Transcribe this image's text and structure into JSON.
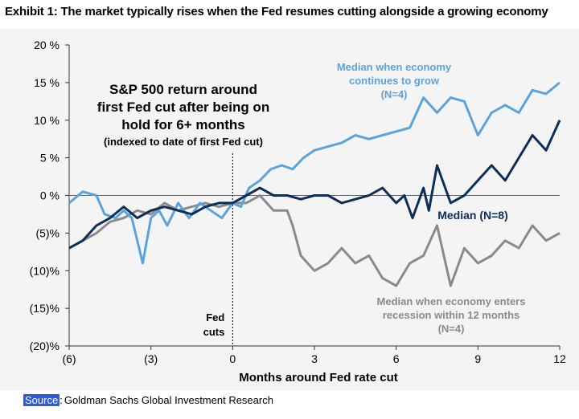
{
  "header": {
    "title": "Exhibit 1: The market typically rises when the Fed resumes cutting alongside a growing economy"
  },
  "source": {
    "label": "Source",
    "separator": ":",
    "text": "Goldman Sachs Global Investment Research"
  },
  "colors": {
    "median": "#0d2e57",
    "growth": "#5ba3dc",
    "recession": "#8a8a8a",
    "plot_bg": "#f4f4f4"
  },
  "chart_data": {
    "type": "line",
    "title_lines": [
      "S&P 500 return around",
      "first Fed cut after being on",
      "hold for 6+ months",
      "(indexed to date of first Fed cut)"
    ],
    "xlabel": "Months around Fed rate cut",
    "ylabel": "",
    "xlim": [
      -6,
      12
    ],
    "ylim": [
      -20,
      20
    ],
    "x_ticks": [
      -6,
      -3,
      0,
      3,
      6,
      9,
      12
    ],
    "x_tick_labels": [
      "(6)",
      "(3)",
      "0",
      "3",
      "6",
      "9",
      "12"
    ],
    "y_ticks": [
      20,
      15,
      10,
      5,
      0,
      -5,
      -10,
      -15,
      -20
    ],
    "y_tick_labels": [
      "20 %",
      "15 %",
      "10 %",
      "5 %",
      "0 %",
      "(5)%",
      "(10)%",
      "(15)%",
      "(20)%"
    ],
    "event": {
      "x": 0,
      "label_lines": [
        "Fed",
        "cuts"
      ]
    },
    "series": [
      {
        "name": "Median when economy continues to grow (N=4)",
        "label_lines": [
          "Median when economy",
          "continues to grow",
          "(N=4)"
        ],
        "color_key": "growth",
        "x": [
          -6,
          -5.5,
          -5,
          -4.7,
          -4.3,
          -4,
          -3.7,
          -3.5,
          -3.3,
          -3,
          -2.7,
          -2.4,
          -2,
          -1.6,
          -1.2,
          -0.8,
          -0.4,
          0,
          0.3,
          0.6,
          1,
          1.4,
          1.8,
          2.2,
          2.6,
          3,
          3.5,
          4,
          4.5,
          5,
          5.5,
          6,
          6.5,
          7,
          7.5,
          8,
          8.5,
          9,
          9.5,
          10,
          10.5,
          11,
          11.5,
          12
        ],
        "y": [
          -1,
          0.5,
          0,
          -2.5,
          -3,
          -2,
          -3,
          -6,
          -9,
          -3,
          -2,
          -4,
          -1,
          -3,
          -1,
          -2,
          -3,
          -1,
          -1.5,
          1,
          2,
          3.5,
          4,
          3.5,
          5,
          6,
          6.5,
          7,
          8,
          7.5,
          8,
          8.5,
          9,
          13,
          11,
          13,
          12.5,
          8,
          11,
          12,
          11,
          14,
          13.5,
          15
        ]
      },
      {
        "name": "Median (N=8)",
        "label_lines": [
          "Median (N=8)"
        ],
        "color_key": "median",
        "x": [
          -6,
          -5.5,
          -5,
          -4.5,
          -4,
          -3.5,
          -3,
          -2.5,
          -2,
          -1.5,
          -1,
          -0.5,
          0,
          0.5,
          1,
          1.5,
          2,
          2.5,
          3,
          3.5,
          4,
          4.5,
          5,
          5.5,
          6,
          6.3,
          6.6,
          7,
          7.2,
          7.5,
          8,
          8.5,
          9,
          9.5,
          10,
          10.5,
          11,
          11.5,
          12
        ],
        "y": [
          -7,
          -6,
          -4,
          -3,
          -1.5,
          -3,
          -2,
          -1.5,
          -2,
          -2.5,
          -1.5,
          -1,
          -1,
          0,
          1,
          0,
          0,
          -0.5,
          0,
          0,
          -1,
          -0.5,
          0,
          1,
          -1,
          0,
          -3,
          1,
          -2,
          4,
          -1,
          0,
          2,
          4,
          2,
          5,
          8,
          6,
          10
        ]
      },
      {
        "name": "Median when economy enters recession within 12 months (N=4)",
        "label_lines": [
          "Median when economy enters",
          "recession within 12 months",
          "(N=4)"
        ],
        "color_key": "recession",
        "x": [
          -6,
          -5.5,
          -5,
          -4.5,
          -4,
          -3.5,
          -3,
          -2.5,
          -2,
          -1.5,
          -1,
          -0.5,
          0,
          0.5,
          1,
          1.5,
          2,
          2.2,
          2.5,
          3,
          3.5,
          4,
          4.5,
          5,
          5.5,
          6,
          6.5,
          7,
          7.5,
          8,
          8.5,
          9,
          9.5,
          10,
          10.5,
          11,
          11.5,
          12
        ],
        "y": [
          -7,
          -6,
          -5,
          -3.5,
          -3,
          -2,
          -2.5,
          -1,
          -2,
          -1.5,
          -1,
          -1.5,
          -1,
          -1,
          0,
          -2,
          -2,
          -4,
          -8,
          -10,
          -9,
          -7,
          -9,
          -8,
          -11,
          -12,
          -9,
          -8,
          -4,
          -12,
          -7,
          -9,
          -8,
          -6,
          -7,
          -4,
          -6,
          -5
        ]
      }
    ]
  }
}
